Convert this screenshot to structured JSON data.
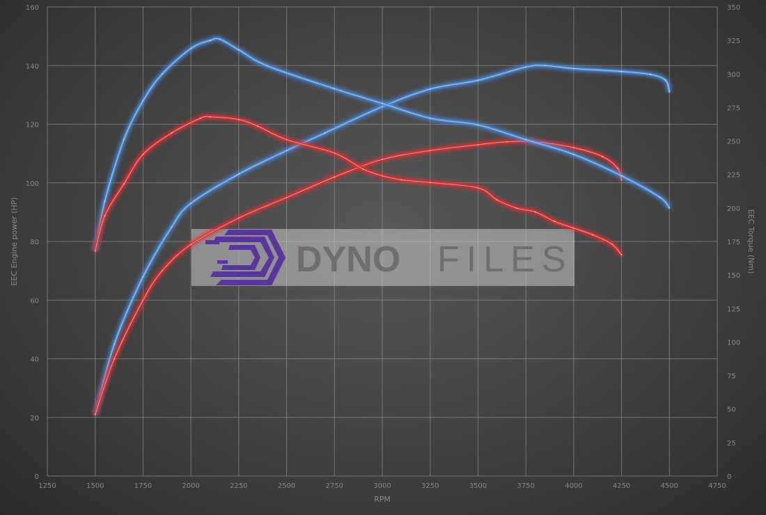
{
  "chart_data": {
    "type": "line",
    "title": "",
    "xlabel": "RPM",
    "ylabel_left": "EEC Engine power (HP)",
    "ylabel_right": "EEC Torque (Nm)",
    "xlim": [
      1250,
      4750
    ],
    "ylim_left": [
      0,
      160
    ],
    "ylim_right": [
      0,
      350
    ],
    "x_ticks": [
      1250,
      1500,
      1750,
      2000,
      2250,
      2500,
      2750,
      3000,
      3250,
      3500,
      3750,
      4000,
      4250,
      4500,
      4750
    ],
    "y_left_ticks": [
      0,
      20,
      40,
      60,
      80,
      100,
      120,
      140,
      160
    ],
    "y_right_ticks": [
      0,
      25,
      50,
      75,
      100,
      125,
      150,
      175,
      200,
      225,
      250,
      275,
      300,
      325,
      350
    ],
    "grid": true,
    "legend": "none",
    "series": [
      {
        "axis": "left",
        "color": "#4a8fe0",
        "x": [
          1500,
          1600,
          1750,
          1900,
          2000,
          2250,
          2500,
          2700,
          3000,
          3250,
          3500,
          3750,
          3850,
          4000,
          4250,
          4400,
          4480,
          4500
        ],
        "y": [
          21,
          45,
          68,
          85,
          93,
          103,
          111,
          117,
          126,
          132,
          135,
          139.5,
          140,
          139,
          138,
          137,
          135,
          131
        ]
      },
      {
        "axis": "left",
        "color": "#e03030",
        "x": [
          1500,
          1600,
          1750,
          1850,
          2000,
          2250,
          2500,
          2750,
          3000,
          3250,
          3500,
          3650,
          3800,
          4000,
          4150,
          4230,
          4250
        ],
        "y": [
          21,
          40,
          60,
          70,
          79,
          88,
          95,
          102,
          108,
          111,
          113,
          114,
          114,
          112,
          109,
          105,
          101
        ]
      },
      {
        "axis": "right",
        "color": "#4a8fe0",
        "x": [
          1500,
          1550,
          1650,
          1750,
          1850,
          2000,
          2100,
          2150,
          2250,
          2400,
          2750,
          3000,
          3250,
          3500,
          3750,
          4000,
          4250,
          4450,
          4500
        ],
        "y": [
          168,
          205,
          251,
          280,
          300,
          319,
          325,
          326,
          318,
          306,
          289,
          278,
          267,
          262,
          251,
          240,
          224,
          208,
          200
        ]
      },
      {
        "axis": "right",
        "color": "#e03030",
        "x": [
          1500,
          1550,
          1650,
          1750,
          1900,
          2050,
          2100,
          2250,
          2350,
          2500,
          2750,
          2900,
          3000,
          3100,
          3250,
          3500,
          3600,
          3700,
          3800,
          3900,
          4000,
          4100,
          4200,
          4250
        ],
        "y": [
          168,
          194,
          218,
          240,
          256,
          267,
          268,
          266,
          261,
          251,
          241,
          229,
          224,
          221,
          219,
          215,
          206,
          200,
          197,
          190,
          185,
          180,
          173,
          165
        ]
      }
    ]
  },
  "watermark": {
    "text_bold": "DYNO",
    "text_light": "FILES",
    "logo_color": "#5a35a0"
  }
}
